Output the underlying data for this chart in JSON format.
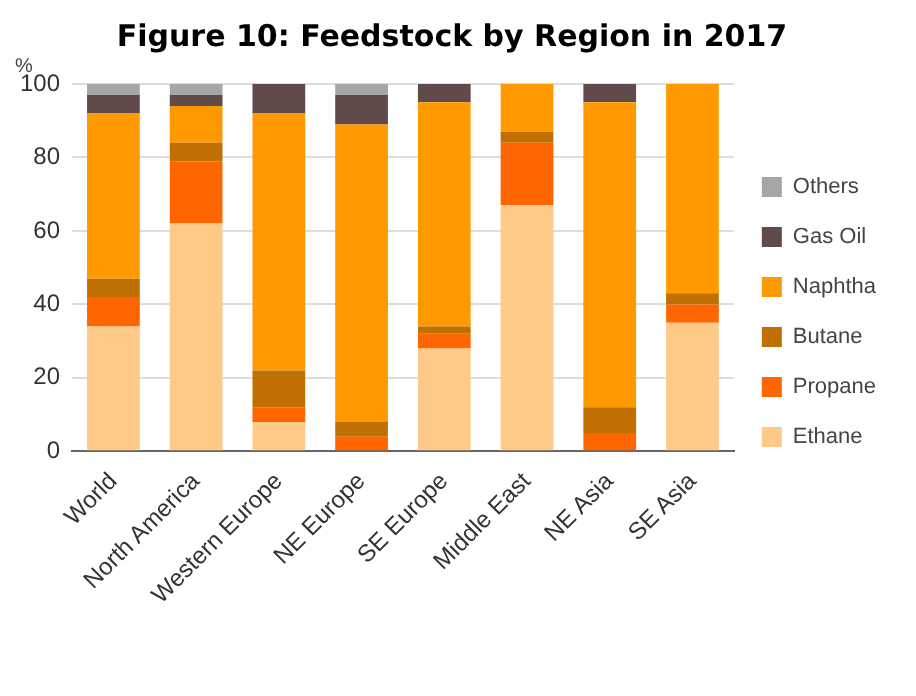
{
  "chart_data": {
    "type": "bar",
    "title": "Figure 10: Feedstock by Region in 2017",
    "ylabel": "%",
    "categories": [
      "World",
      "North America",
      "Western Europe",
      "NE Europe",
      "SE Europe",
      "Middle East",
      "NE Asia",
      "SE Asia"
    ],
    "stacked": true,
    "series": [
      {
        "name": "Ethane",
        "color": "#ffc988",
        "values": [
          34,
          62,
          8,
          0,
          28,
          67,
          0,
          35
        ]
      },
      {
        "name": "Propane",
        "color": "#ff6600",
        "values": [
          8,
          17,
          4,
          4,
          4,
          17,
          5,
          5
        ]
      },
      {
        "name": "Butane",
        "color": "#c07000",
        "values": [
          5,
          5,
          10,
          4,
          2,
          3,
          7,
          3
        ]
      },
      {
        "name": "Naphtha",
        "color": "#ff9900",
        "values": [
          45,
          10,
          70,
          81,
          61,
          13,
          83,
          57
        ]
      },
      {
        "name": "Gas Oil",
        "color": "#604a4a",
        "values": [
          5,
          3,
          8,
          8,
          5,
          0,
          5,
          0
        ]
      },
      {
        "name": "Others",
        "color": "#a6a6a6",
        "values": [
          3,
          3,
          0,
          3,
          0,
          0,
          0,
          0
        ]
      }
    ],
    "ylim": [
      0,
      100
    ],
    "yticks": [
      0,
      20,
      40,
      60,
      80,
      100
    ],
    "grid": "y",
    "legend": "right"
  }
}
